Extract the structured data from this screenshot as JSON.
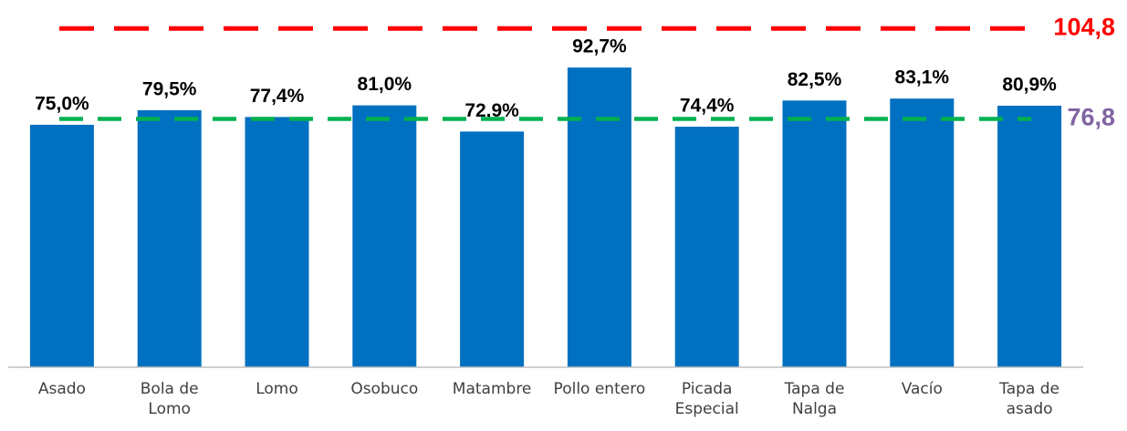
{
  "chart_data": {
    "type": "bar",
    "categories": [
      "Asado",
      "Bola de Lomo",
      "Lomo",
      "Osobuco",
      "Matambre",
      "Pollo entero",
      "Picada Especial",
      "Tapa de Nalga",
      "Vacío",
      "Tapa de asado"
    ],
    "values": [
      75.0,
      79.5,
      77.4,
      81.0,
      72.9,
      92.7,
      74.4,
      82.5,
      83.1,
      80.9
    ],
    "value_labels": [
      "75,0%",
      "79,5%",
      "77,4%",
      "81,0%",
      "72,9%",
      "92,7%",
      "74,4%",
      "82,5%",
      "83,1%",
      "80,9%"
    ],
    "color": "#0070c0",
    "ylim": [
      0,
      113.6
    ],
    "reference_lines": [
      {
        "value": 104.8,
        "label": "104,8",
        "color": "#ff0000",
        "label_color": "#ff0000"
      },
      {
        "value": 76.8,
        "label": "76,8",
        "color": "#00b050",
        "label_color": "#8064a2"
      }
    ]
  }
}
